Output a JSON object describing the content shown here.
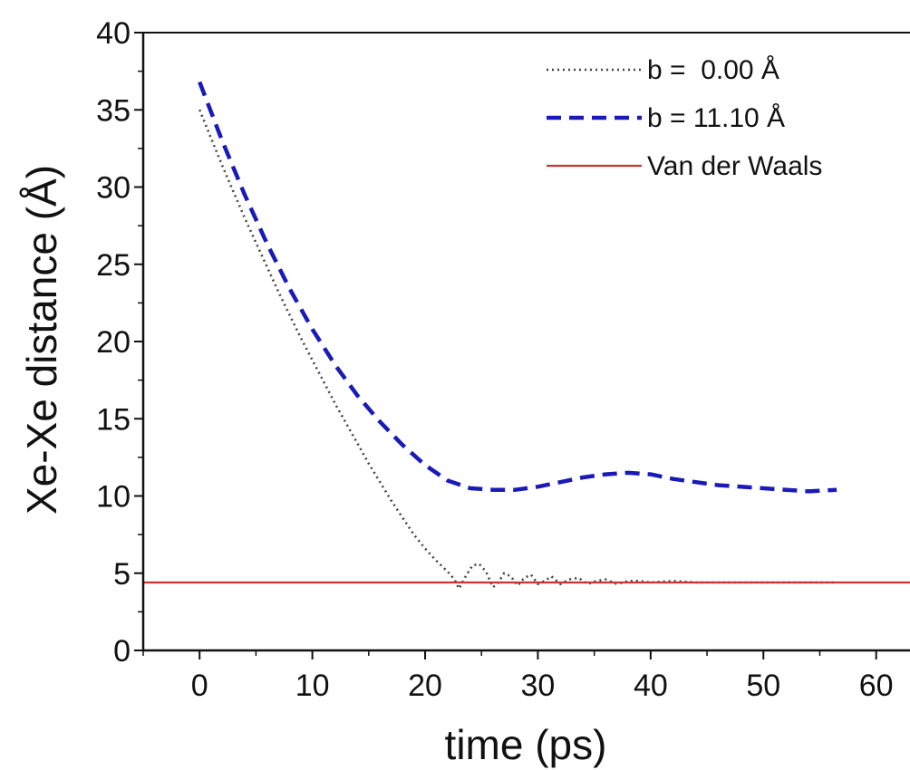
{
  "chart_data": {
    "type": "line",
    "xlabel": "time (ps)",
    "ylabel": "Xe-Xe distance (Å)",
    "xlim": [
      -5,
      63
    ],
    "ylim": [
      0,
      40
    ],
    "xticks": [
      0,
      10,
      20,
      30,
      40,
      50,
      60
    ],
    "yticks": [
      0,
      5,
      10,
      15,
      20,
      25,
      30,
      35,
      40
    ],
    "grid": false,
    "legend_position": "top-right",
    "series": [
      {
        "name": "b =  0.00 Å",
        "style": "dotted",
        "color": "#444444",
        "x": [
          0,
          1,
          2,
          3,
          4,
          5,
          6,
          7,
          8,
          9,
          10,
          11,
          12,
          13,
          14,
          15,
          16,
          17,
          18,
          19,
          20,
          21,
          22,
          22.6,
          23,
          23.6,
          24.2,
          24.8,
          25.4,
          26,
          26.4,
          27,
          27.6,
          28.2,
          28.8,
          29.4,
          30,
          30.6,
          31.2,
          32,
          32.8,
          33.6,
          34.4,
          35.2,
          36,
          37,
          38,
          39,
          40,
          42,
          44,
          46,
          48,
          50,
          52,
          54,
          56.5
        ],
        "y": [
          35.0,
          33.2,
          31.4,
          29.7,
          28.0,
          26.4,
          24.8,
          23.2,
          21.7,
          20.2,
          18.8,
          17.4,
          16.0,
          14.7,
          13.4,
          12.1,
          10.9,
          9.7,
          8.6,
          7.5,
          6.6,
          5.8,
          5.1,
          4.6,
          4.0,
          4.8,
          5.5,
          5.6,
          5.1,
          4.1,
          4.3,
          5.0,
          4.8,
          4.2,
          4.7,
          4.9,
          4.3,
          4.5,
          4.8,
          4.3,
          4.6,
          4.7,
          4.3,
          4.5,
          4.6,
          4.3,
          4.5,
          4.5,
          4.4,
          4.5,
          4.4,
          4.4,
          4.4,
          4.4,
          4.4,
          4.4,
          4.4
        ]
      },
      {
        "name": "b = 11.10 Å",
        "style": "dashed",
        "color": "#1a1ab8",
        "x": [
          0,
          2,
          4,
          6,
          8,
          10,
          12,
          14,
          16,
          18,
          20,
          22,
          24,
          26,
          28,
          30,
          32,
          34,
          36,
          38,
          40,
          42,
          44,
          46,
          48,
          50,
          52,
          54,
          56.5
        ],
        "y": [
          36.8,
          33.0,
          29.5,
          26.3,
          23.4,
          20.8,
          18.5,
          16.5,
          14.8,
          13.3,
          12.0,
          11.0,
          10.5,
          10.4,
          10.4,
          10.6,
          10.9,
          11.2,
          11.4,
          11.5,
          11.4,
          11.1,
          10.9,
          10.7,
          10.6,
          10.5,
          10.4,
          10.3,
          10.4
        ]
      },
      {
        "name": "Van der Waals",
        "style": "solid",
        "color": "#cc3333",
        "x": [
          -5,
          63
        ],
        "y": [
          4.4,
          4.4
        ]
      }
    ]
  }
}
